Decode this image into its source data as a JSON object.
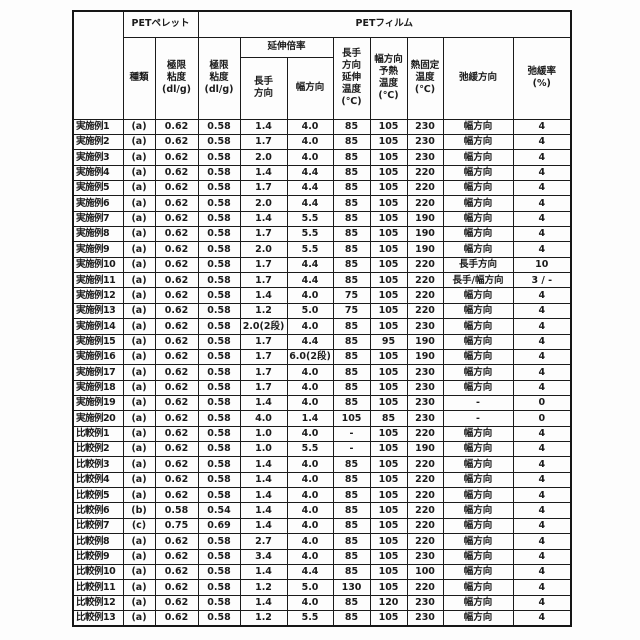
{
  "page": {
    "background_color": "#fdfdfd",
    "text_color": "#1b1b1b",
    "border_color": "#161616"
  },
  "table": {
    "col_headers": {
      "corner": "",
      "pellet_group": "PETペレット",
      "film_group": "PETフィルム",
      "kind": "種類",
      "iv_pellet": "極限\n粘度\n(dl/g)",
      "iv_film": "極限\n粘度\n(dl/g)",
      "stretch_ratio_group": "延伸倍率",
      "stretch_md": "長手\n方向",
      "stretch_td": "幅方向",
      "md_stretch_temp": "長手\n方向\n延伸\n温度\n(℃)",
      "td_preheat_temp": "幅方向\n予熱\n温度\n(℃)",
      "heat_set_temp": "熱固定\n温度\n(℃)",
      "relax_direction": "弛緩方向",
      "relax_rate": "弛緩率\n(%)"
    },
    "rows": [
      [
        "実施例1",
        "(a)",
        "0.62",
        "0.58",
        "1.4",
        "4.0",
        "85",
        "105",
        "230",
        "幅方向",
        "4"
      ],
      [
        "実施例2",
        "(a)",
        "0.62",
        "0.58",
        "1.7",
        "4.0",
        "85",
        "105",
        "230",
        "幅方向",
        "4"
      ],
      [
        "実施例3",
        "(a)",
        "0.62",
        "0.58",
        "2.0",
        "4.0",
        "85",
        "105",
        "230",
        "幅方向",
        "4"
      ],
      [
        "実施例4",
        "(a)",
        "0.62",
        "0.58",
        "1.4",
        "4.4",
        "85",
        "105",
        "220",
        "幅方向",
        "4"
      ],
      [
        "実施例5",
        "(a)",
        "0.62",
        "0.58",
        "1.7",
        "4.4",
        "85",
        "105",
        "220",
        "幅方向",
        "4"
      ],
      [
        "実施例6",
        "(a)",
        "0.62",
        "0.58",
        "2.0",
        "4.4",
        "85",
        "105",
        "220",
        "幅方向",
        "4"
      ],
      [
        "実施例7",
        "(a)",
        "0.62",
        "0.58",
        "1.4",
        "5.5",
        "85",
        "105",
        "190",
        "幅方向",
        "4"
      ],
      [
        "実施例8",
        "(a)",
        "0.62",
        "0.58",
        "1.7",
        "5.5",
        "85",
        "105",
        "190",
        "幅方向",
        "4"
      ],
      [
        "実施例9",
        "(a)",
        "0.62",
        "0.58",
        "2.0",
        "5.5",
        "85",
        "105",
        "190",
        "幅方向",
        "4"
      ],
      [
        "実施例10",
        "(a)",
        "0.62",
        "0.58",
        "1.7",
        "4.4",
        "85",
        "105",
        "220",
        "長手方向",
        "10"
      ],
      [
        "実施例11",
        "(a)",
        "0.62",
        "0.58",
        "1.7",
        "4.4",
        "85",
        "105",
        "220",
        "長手/幅方向",
        "3 / -"
      ],
      [
        "実施例12",
        "(a)",
        "0.62",
        "0.58",
        "1.4",
        "4.0",
        "75",
        "105",
        "220",
        "幅方向",
        "4"
      ],
      [
        "実施例13",
        "(a)",
        "0.62",
        "0.58",
        "1.2",
        "5.0",
        "75",
        "105",
        "220",
        "幅方向",
        "4"
      ],
      [
        "実施例14",
        "(a)",
        "0.62",
        "0.58",
        "2.0(2段)",
        "4.0",
        "85",
        "105",
        "230",
        "幅方向",
        "4"
      ],
      [
        "実施例15",
        "(a)",
        "0.62",
        "0.58",
        "1.7",
        "4.4",
        "85",
        "95",
        "190",
        "幅方向",
        "4"
      ],
      [
        "実施例16",
        "(a)",
        "0.62",
        "0.58",
        "1.7",
        "6.0(2段)",
        "85",
        "105",
        "190",
        "幅方向",
        "4"
      ],
      [
        "実施例17",
        "(a)",
        "0.62",
        "0.58",
        "1.7",
        "4.0",
        "85",
        "105",
        "230",
        "幅方向",
        "4"
      ],
      [
        "実施例18",
        "(a)",
        "0.62",
        "0.58",
        "1.7",
        "4.0",
        "85",
        "105",
        "230",
        "幅方向",
        "4"
      ],
      [
        "実施例19",
        "(a)",
        "0.62",
        "0.58",
        "1.4",
        "4.0",
        "85",
        "105",
        "230",
        "-",
        "0"
      ],
      [
        "実施例20",
        "(a)",
        "0.62",
        "0.58",
        "4.0",
        "1.4",
        "105",
        "85",
        "230",
        "-",
        "0"
      ],
      [
        "比較例1",
        "(a)",
        "0.62",
        "0.58",
        "1.0",
        "4.0",
        "-",
        "105",
        "220",
        "幅方向",
        "4"
      ],
      [
        "比較例2",
        "(a)",
        "0.62",
        "0.58",
        "1.0",
        "5.5",
        "-",
        "105",
        "190",
        "幅方向",
        "4"
      ],
      [
        "比較例3",
        "(a)",
        "0.62",
        "0.58",
        "1.4",
        "4.0",
        "85",
        "105",
        "220",
        "幅方向",
        "4"
      ],
      [
        "比較例4",
        "(a)",
        "0.62",
        "0.58",
        "1.4",
        "4.0",
        "85",
        "105",
        "220",
        "幅方向",
        "4"
      ],
      [
        "比較例5",
        "(a)",
        "0.62",
        "0.58",
        "1.4",
        "4.0",
        "85",
        "105",
        "220",
        "幅方向",
        "4"
      ],
      [
        "比較例6",
        "(b)",
        "0.58",
        "0.54",
        "1.4",
        "4.0",
        "85",
        "105",
        "220",
        "幅方向",
        "4"
      ],
      [
        "比較例7",
        "(c)",
        "0.75",
        "0.69",
        "1.4",
        "4.0",
        "85",
        "105",
        "220",
        "幅方向",
        "4"
      ],
      [
        "比較例8",
        "(a)",
        "0.62",
        "0.58",
        "2.7",
        "4.0",
        "85",
        "105",
        "220",
        "幅方向",
        "4"
      ],
      [
        "比較例9",
        "(a)",
        "0.62",
        "0.58",
        "3.4",
        "4.0",
        "85",
        "105",
        "230",
        "幅方向",
        "4"
      ],
      [
        "比較例10",
        "(a)",
        "0.62",
        "0.58",
        "1.4",
        "4.4",
        "85",
        "105",
        "100",
        "幅方向",
        "4"
      ],
      [
        "比較例11",
        "(a)",
        "0.62",
        "0.58",
        "1.2",
        "5.0",
        "130",
        "105",
        "220",
        "幅方向",
        "4"
      ],
      [
        "比較例12",
        "(a)",
        "0.62",
        "0.58",
        "1.4",
        "4.0",
        "85",
        "120",
        "230",
        "幅方向",
        "4"
      ],
      [
        "比較例13",
        "(a)",
        "0.62",
        "0.58",
        "1.2",
        "5.5",
        "85",
        "105",
        "230",
        "幅方向",
        "4"
      ]
    ]
  }
}
